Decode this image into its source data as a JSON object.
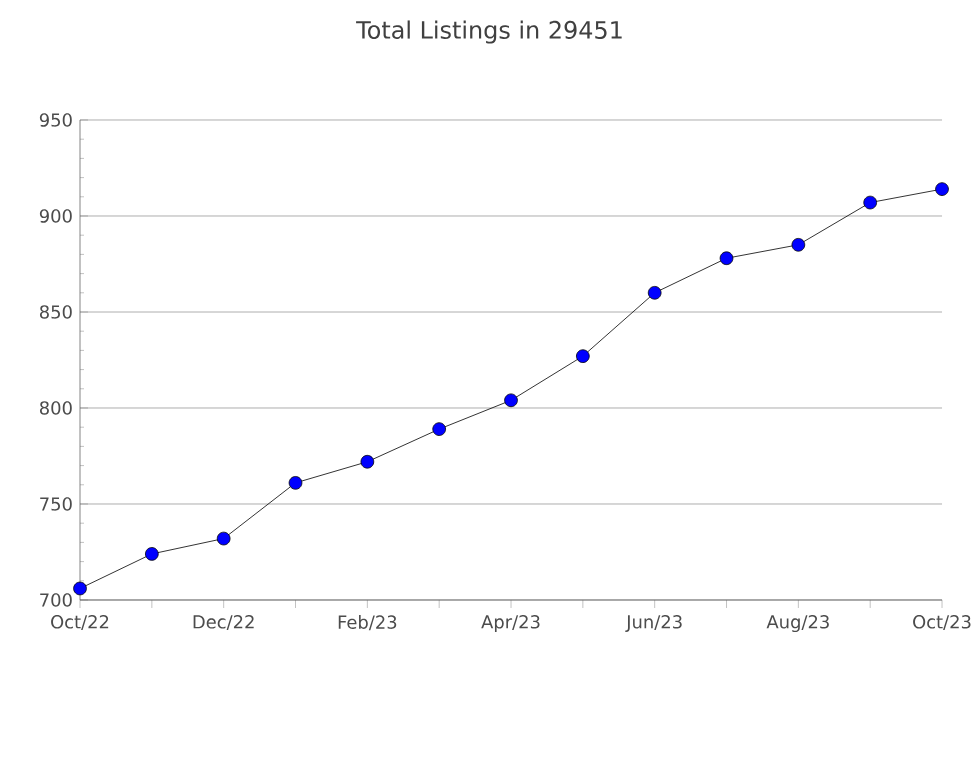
{
  "chart_data": {
    "type": "line",
    "title": "Total Listings in 29451",
    "categories": [
      "Oct/22",
      null,
      "Dec/22",
      null,
      "Feb/23",
      null,
      "Apr/23",
      null,
      "Jun/23",
      null,
      "Aug/23",
      null,
      "Oct/23"
    ],
    "series": [
      {
        "color": "#0000ff",
        "values": [
          706,
          724,
          732,
          761,
          772,
          789,
          804,
          827,
          860,
          878,
          885,
          907,
          914
        ]
      }
    ],
    "ylim": [
      700,
      950
    ],
    "yticks": [
      700,
      750,
      800,
      850,
      900,
      950
    ],
    "grid": "y",
    "marker": "circle",
    "line_style": "solid"
  }
}
